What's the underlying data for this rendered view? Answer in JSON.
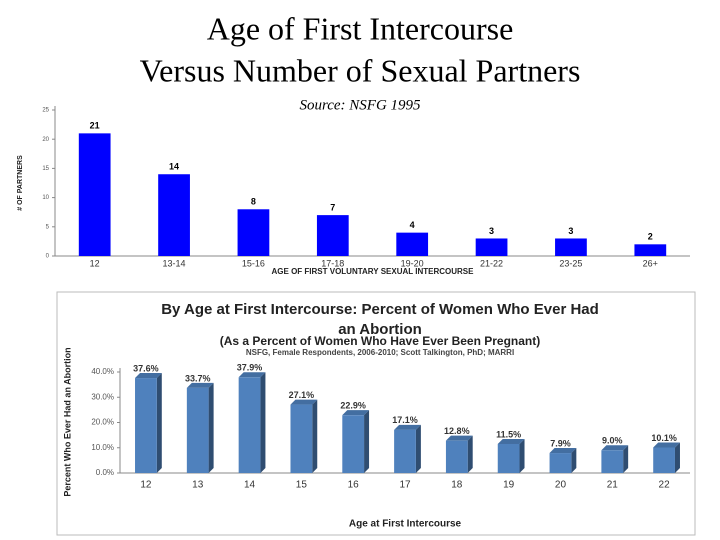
{
  "slide": {
    "title_lines": [
      "Age of First Intercourse",
      "Versus Number of Sexual Partners"
    ],
    "subtitle": "Source: NSFG 1995"
  },
  "chart_data": [
    {
      "type": "bar",
      "ylabel": "# OF PARTNERS",
      "xlabel": "AGE OF FIRST VOLUNTARY SEXUAL INTERCOURSE",
      "categories": [
        "12",
        "13-14",
        "15-16",
        "17-18",
        "19-20",
        "21-22",
        "23-25",
        "26+"
      ],
      "values": [
        21,
        14,
        8,
        7,
        4,
        3,
        3,
        2
      ],
      "color": "#0000ff",
      "ylim": [
        0,
        25
      ],
      "yticks": [
        0,
        5,
        10,
        15,
        20,
        25
      ],
      "grid": false
    },
    {
      "type": "bar3d",
      "title": [
        "By Age at First Intercourse: Percent of Women Who Ever Had",
        "an Abortion"
      ],
      "subtitle": "(As a Percent of Women Who Have Ever Been Pregnant)",
      "source": "NSFG, Female Respondents, 2006-2010; Scott Talkington, PhD; MARRI",
      "ylabel": "Percent Who Ever Had an Abortion",
      "xlabel": "Age at First Intercourse",
      "categories": [
        "12",
        "13",
        "14",
        "15",
        "16",
        "17",
        "18",
        "19",
        "20",
        "21",
        "22"
      ],
      "values": [
        37.6,
        33.7,
        37.9,
        27.1,
        22.9,
        17.1,
        12.8,
        11.5,
        7.9,
        9.0,
        10.1
      ],
      "value_labels": [
        "37.6%",
        "33.7%",
        "37.9%",
        "27.1%",
        "22.9%",
        "17.1%",
        "12.8%",
        "11.5%",
        "7.9%",
        "9.0%",
        "10.1%"
      ],
      "color": "#4f81bd",
      "ylim": [
        0,
        40
      ],
      "yticks": [
        {
          "value": 0,
          "label": "0.0%"
        },
        {
          "value": 10,
          "label": "10.0%"
        },
        {
          "value": 20,
          "label": "20.0%"
        },
        {
          "value": 30,
          "label": "30.0%"
        },
        {
          "value": 40,
          "label": "40.0%"
        }
      ],
      "grid": false
    }
  ]
}
